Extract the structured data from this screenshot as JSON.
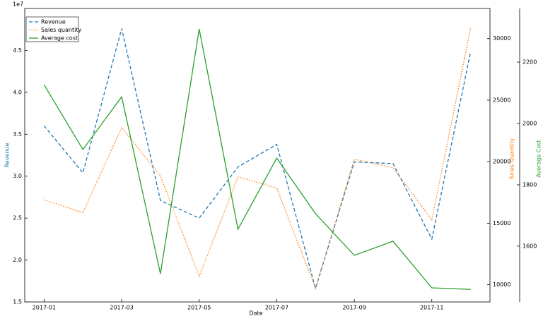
{
  "chart_data": {
    "type": "line",
    "xlabel": "Date",
    "ylabel": "Revenue",
    "y2label": "Sales Quantity",
    "y3label": "Average Cost",
    "y_offset_label": "1e7",
    "x": [
      "2017-01",
      "2017-02",
      "2017-03",
      "2017-04",
      "2017-05",
      "2017-06",
      "2017-07",
      "2017-08",
      "2017-09",
      "2017-10",
      "2017-11",
      "2017-12"
    ],
    "xticks": [
      "2017-01",
      "2017-03",
      "2017-05",
      "2017-07",
      "2017-09",
      "2017-11"
    ],
    "ylim": [
      15000000,
      50000000
    ],
    "yticks": [
      {
        "value": 15000000,
        "label": "1.5"
      },
      {
        "value": 20000000,
        "label": "2.0"
      },
      {
        "value": 25000000,
        "label": "2.5"
      },
      {
        "value": 30000000,
        "label": "3.0"
      },
      {
        "value": 35000000,
        "label": "3.5"
      },
      {
        "value": 40000000,
        "label": "4.0"
      },
      {
        "value": 45000000,
        "label": "4.5"
      }
    ],
    "y2lim": [
      8600,
      32450
    ],
    "y2ticks": [
      10000,
      15000,
      20000,
      25000,
      30000
    ],
    "y3lim": [
      1418,
      2375
    ],
    "y3ticks": [
      1600,
      1800,
      2000,
      2200
    ],
    "legend": "upper left",
    "series": [
      {
        "name": "Revenue",
        "color": "#1f77b4",
        "linestyle": "dashed",
        "axis": "y",
        "values": [
          36000000,
          30400000,
          47600000,
          27100000,
          25000000,
          31100000,
          33800000,
          16600000,
          31700000,
          31500000,
          22500000,
          44800000
        ]
      },
      {
        "name": "Sales quantity",
        "color": "#ff7f0e",
        "linestyle": "dotted",
        "axis": "y2",
        "values": [
          16900,
          15850,
          22780,
          18825,
          10690,
          18770,
          17850,
          9710,
          20200,
          19510,
          15270,
          30860
        ]
      },
      {
        "name": "Average cost",
        "color": "#2ca02c",
        "linestyle": "solid",
        "axis": "y3",
        "values": [
          2126,
          1915,
          2087,
          1510,
          2308,
          1655,
          1887,
          1706,
          1570,
          1616,
          1464,
          1459
        ]
      }
    ]
  }
}
